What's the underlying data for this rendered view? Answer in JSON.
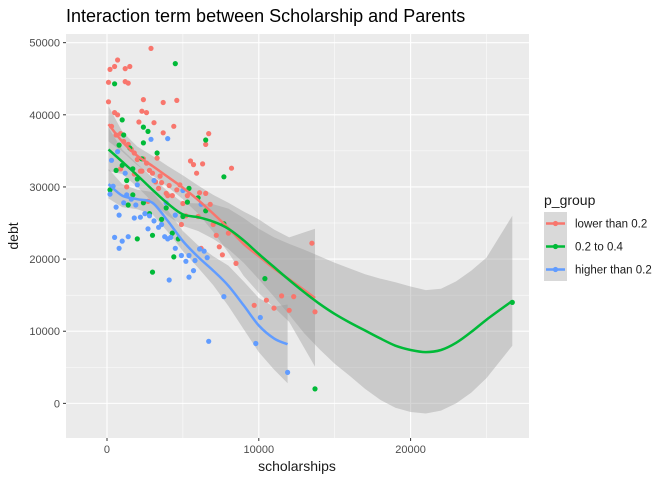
{
  "chart_data": {
    "type": "scatter",
    "title": "Interaction term between Scholarship and Parents",
    "xlabel": "scholarships",
    "ylabel": "debt",
    "xlim": [
      -2700,
      27800
    ],
    "ylim": [
      -4800,
      51200
    ],
    "x_ticks": [
      0,
      10000,
      20000
    ],
    "y_ticks": [
      0,
      10000,
      20000,
      30000,
      40000,
      50000
    ],
    "grid": true,
    "legend": {
      "title": "p_group",
      "placement": "right"
    },
    "series": [
      {
        "name": "lower than 0.2",
        "color": "#F8766D",
        "points": [
          [
            100,
            44500
          ],
          [
            200,
            46300
          ],
          [
            500,
            46700
          ],
          [
            700,
            47600
          ],
          [
            1200,
            46400
          ],
          [
            1400,
            44400
          ],
          [
            1200,
            44600
          ],
          [
            1500,
            46700
          ],
          [
            2900,
            49200
          ],
          [
            4600,
            42000
          ],
          [
            2400,
            42100
          ],
          [
            3700,
            41700
          ],
          [
            2300,
            40500
          ],
          [
            2600,
            40300
          ],
          [
            2100,
            39000
          ],
          [
            3100,
            38900
          ],
          [
            3700,
            37500
          ],
          [
            4400,
            38400
          ],
          [
            6700,
            37400
          ],
          [
            6500,
            35900
          ],
          [
            100,
            41800
          ],
          [
            300,
            38400
          ],
          [
            500,
            40300
          ],
          [
            700,
            40000
          ],
          [
            600,
            37200
          ],
          [
            900,
            37400
          ],
          [
            1100,
            36300
          ],
          [
            1400,
            35900
          ],
          [
            1600,
            35200
          ],
          [
            1800,
            34700
          ],
          [
            2000,
            33800
          ],
          [
            2200,
            32200
          ],
          [
            2400,
            33900
          ],
          [
            2600,
            33300
          ],
          [
            2800,
            32300
          ],
          [
            3000,
            31900
          ],
          [
            3200,
            30700
          ],
          [
            3400,
            29800
          ],
          [
            3600,
            30600
          ],
          [
            3900,
            29100
          ],
          [
            4100,
            30200
          ],
          [
            4300,
            28800
          ],
          [
            4600,
            29600
          ],
          [
            4800,
            30300
          ],
          [
            5000,
            27700
          ],
          [
            5300,
            28800
          ],
          [
            5500,
            33600
          ],
          [
            5700,
            33100
          ],
          [
            5900,
            31900
          ],
          [
            6100,
            29200
          ],
          [
            6300,
            33200
          ],
          [
            6500,
            29100
          ],
          [
            6800,
            27600
          ],
          [
            7000,
            24800
          ],
          [
            7200,
            23300
          ],
          [
            7400,
            21700
          ],
          [
            8200,
            32600
          ],
          [
            8000,
            23600
          ],
          [
            7600,
            20600
          ],
          [
            8500,
            19400
          ],
          [
            9700,
            13600
          ],
          [
            10500,
            14300
          ],
          [
            11000,
            13200
          ],
          [
            11500,
            14900
          ],
          [
            12000,
            12900
          ],
          [
            12300,
            14800
          ],
          [
            13500,
            22200
          ],
          [
            13700,
            12700
          ],
          [
            2300,
            32200
          ],
          [
            3300,
            34000
          ],
          [
            3500,
            31500
          ],
          [
            1800,
            31800
          ],
          [
            900,
            32500
          ],
          [
            1300,
            30000
          ],
          [
            2700,
            28000
          ],
          [
            4000,
            28800
          ],
          [
            5200,
            26000
          ],
          [
            4900,
            24800
          ],
          [
            6000,
            25900
          ],
          [
            6200,
            21500
          ]
        ]
      },
      {
        "name": "0.2 to 0.4",
        "color": "#00BA38",
        "points": [
          [
            500,
            44300
          ],
          [
            4500,
            47100
          ],
          [
            1000,
            39300
          ],
          [
            2400,
            38300
          ],
          [
            2700,
            37700
          ],
          [
            1500,
            35400
          ],
          [
            3300,
            34700
          ],
          [
            2300,
            33900
          ],
          [
            1000,
            33000
          ],
          [
            600,
            32300
          ],
          [
            1700,
            32500
          ],
          [
            1300,
            30900
          ],
          [
            2000,
            31100
          ],
          [
            200,
            29600
          ],
          [
            1700,
            28900
          ],
          [
            2400,
            27800
          ],
          [
            1400,
            27500
          ],
          [
            2800,
            26300
          ],
          [
            3600,
            25500
          ],
          [
            4300,
            23600
          ],
          [
            3000,
            23300
          ],
          [
            2000,
            22800
          ],
          [
            4400,
            20300
          ],
          [
            4700,
            22800
          ],
          [
            3000,
            18200
          ],
          [
            6500,
            26700
          ],
          [
            6500,
            36500
          ],
          [
            7700,
            31400
          ],
          [
            6000,
            28500
          ],
          [
            5300,
            27900
          ],
          [
            10400,
            17300
          ],
          [
            26700,
            14000
          ],
          [
            13700,
            2000
          ],
          [
            7700,
            24900
          ],
          [
            5000,
            25900
          ],
          [
            3900,
            27100
          ],
          [
            800,
            35800
          ],
          [
            1100,
            37200
          ],
          [
            2400,
            36100
          ],
          [
            5400,
            29800
          ]
        ]
      },
      {
        "name": "higher than 0.2",
        "color": "#619CFF",
        "points": [
          [
            400,
            30100
          ],
          [
            200,
            29000
          ],
          [
            600,
            27200
          ],
          [
            800,
            26100
          ],
          [
            1100,
            27800
          ],
          [
            1300,
            28900
          ],
          [
            1600,
            28300
          ],
          [
            1900,
            27500
          ],
          [
            2200,
            25800
          ],
          [
            2500,
            26300
          ],
          [
            2800,
            26000
          ],
          [
            3100,
            25300
          ],
          [
            3400,
            24400
          ],
          [
            3600,
            24800
          ],
          [
            3800,
            23100
          ],
          [
            4000,
            22800
          ],
          [
            4200,
            23000
          ],
          [
            4500,
            21500
          ],
          [
            4900,
            20500
          ],
          [
            5200,
            19700
          ],
          [
            5400,
            20500
          ],
          [
            5800,
            19800
          ],
          [
            6100,
            21400
          ],
          [
            6400,
            21100
          ],
          [
            6600,
            20200
          ],
          [
            2900,
            36600
          ],
          [
            4000,
            36700
          ],
          [
            6200,
            27600
          ],
          [
            5000,
            29500
          ],
          [
            7700,
            14800
          ],
          [
            9800,
            8300
          ],
          [
            10100,
            11900
          ],
          [
            11900,
            4300
          ],
          [
            6700,
            8600
          ],
          [
            4100,
            17100
          ],
          [
            5400,
            17500
          ],
          [
            5700,
            18400
          ],
          [
            500,
            23000
          ],
          [
            800,
            21500
          ],
          [
            1000,
            22500
          ],
          [
            1400,
            23100
          ],
          [
            1800,
            25700
          ],
          [
            2700,
            24200
          ],
          [
            4500,
            26100
          ],
          [
            300,
            33700
          ],
          [
            700,
            34900
          ],
          [
            1200,
            31900
          ],
          [
            2000,
            30300
          ],
          [
            3100,
            30900
          ],
          [
            3900,
            27800
          ]
        ]
      }
    ],
    "smooths": [
      {
        "name": "lower than 0.2",
        "color": "#F8766D",
        "x": [
          100,
          1000,
          2000,
          3000,
          4000,
          5000,
          6000,
          7000,
          8000,
          9000,
          10000,
          11000,
          12000,
          13700
        ],
        "y": [
          38700,
          36300,
          34300,
          32900,
          31400,
          29900,
          28200,
          26300,
          24300,
          22100,
          20400,
          18700,
          17200,
          14600
        ],
        "lo": [
          36300,
          34900,
          33000,
          31600,
          30000,
          28300,
          26300,
          23800,
          20900,
          17700,
          15300,
          13300,
          11300,
          5100
        ],
        "hi": [
          41200,
          37700,
          35600,
          34300,
          32900,
          31600,
          30200,
          28900,
          27800,
          26600,
          25500,
          24100,
          23000,
          24200
        ]
      },
      {
        "name": "0.2 to 0.4",
        "color": "#00BA38",
        "x": [
          100,
          1000,
          2000,
          3000,
          4000,
          5000,
          6000,
          7000,
          8000,
          9000,
          10000,
          11000,
          12000,
          13000,
          14000,
          15000,
          16000,
          17000,
          18000,
          19000,
          20000,
          21000,
          22000,
          23000,
          24000,
          25000,
          26700
        ],
        "y": [
          35200,
          33500,
          31600,
          29600,
          27700,
          26200,
          25800,
          25200,
          24200,
          22600,
          20700,
          18900,
          17100,
          15400,
          13800,
          12400,
          11200,
          10100,
          9000,
          8000,
          7400,
          7100,
          7400,
          8400,
          9900,
          11600,
          14200
        ],
        "lo": [
          32200,
          31800,
          30000,
          27900,
          26000,
          24600,
          23900,
          22800,
          21400,
          19500,
          17200,
          14800,
          12300,
          9700,
          7500,
          5500,
          3800,
          2000,
          500,
          -600,
          -1200,
          -1400,
          -1000,
          0,
          1500,
          3500,
          8000
        ],
        "hi": [
          38200,
          35200,
          33200,
          31300,
          29400,
          27800,
          27700,
          27600,
          27000,
          25700,
          24200,
          23000,
          22100,
          21300,
          20400,
          19500,
          18700,
          17900,
          17300,
          16800,
          16200,
          15700,
          15900,
          16900,
          18400,
          20200,
          26000
        ]
      },
      {
        "name": "higher than 0.2",
        "color": "#619CFF",
        "x": [
          100,
          1000,
          2000,
          3000,
          4000,
          5000,
          6000,
          7000,
          8000,
          9000,
          10000,
          11000,
          11900
        ],
        "y": [
          30400,
          28800,
          28300,
          27800,
          25300,
          22500,
          20300,
          18400,
          16300,
          13600,
          10800,
          9000,
          8200
        ],
        "lo": [
          28400,
          27200,
          26900,
          26200,
          23800,
          21100,
          18800,
          16400,
          13500,
          10300,
          7100,
          4700,
          2800
        ],
        "hi": [
          32500,
          30400,
          29600,
          29300,
          26800,
          23900,
          21900,
          20400,
          19100,
          16900,
          14600,
          13400,
          13700
        ]
      }
    ]
  }
}
